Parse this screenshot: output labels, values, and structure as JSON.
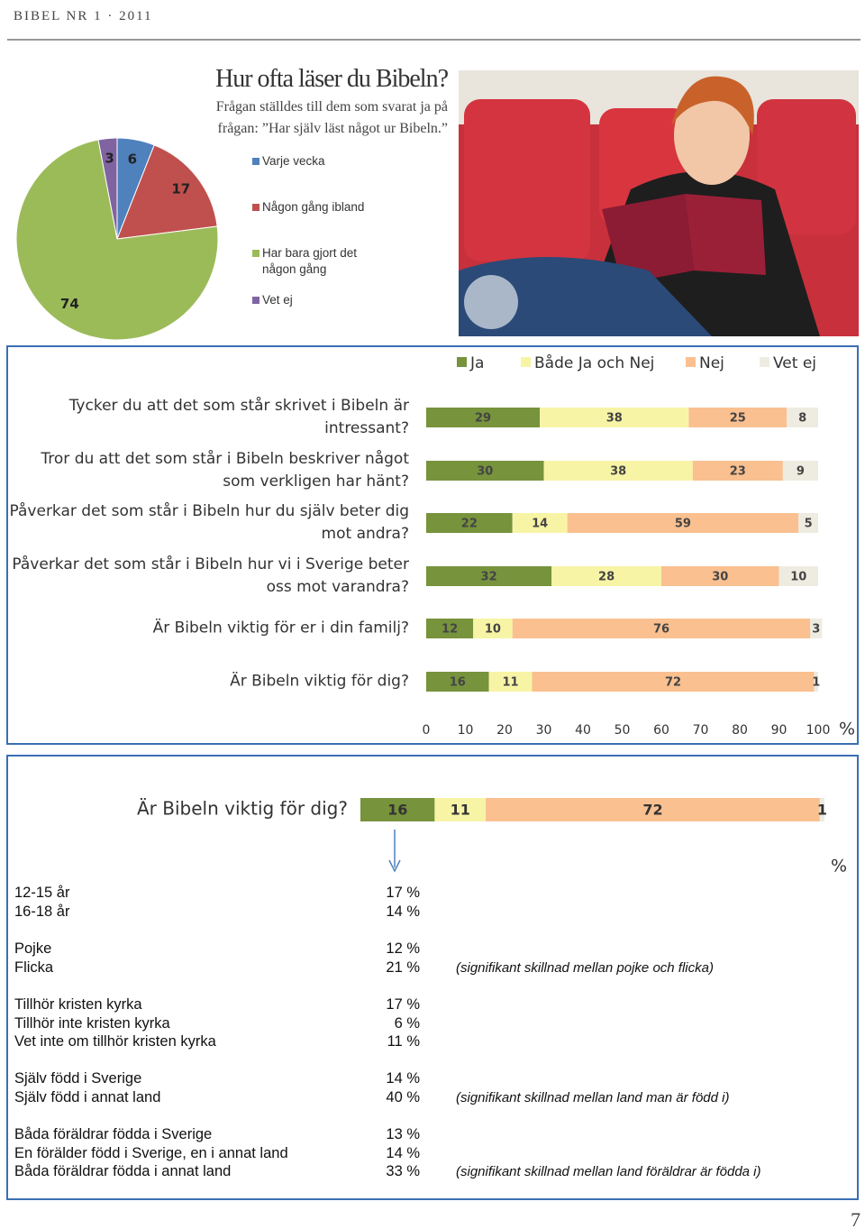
{
  "header": "BIBEL NR 1 · 2011",
  "page_number": "7",
  "chart_data": [
    {
      "type": "pie",
      "title": "Hur ofta läser du Bibeln?",
      "subtitle": "Frågan ställdes till dem som svarat ja på frågan: ”Har själv läst något ur Bibeln.”",
      "categories": [
        "Varje vecka",
        "Någon gång ibland",
        "Har bara gjort det någon gång",
        "Vet ej"
      ],
      "values": [
        6,
        17,
        74,
        3
      ],
      "colors": [
        "#4f81bd",
        "#c0504d",
        "#9bbb59",
        "#8064a2"
      ]
    },
    {
      "type": "stacked-bar",
      "categories": [
        "Tycker du att det som står skrivet i Bibeln är intressant?",
        "Tror du att det som står i Bibeln beskriver något som verkligen har hänt?",
        "Påverkar det som står i Bibeln hur du själv beter dig mot andra?",
        "Påverkar det som står i Bibeln hur vi i Sverige beter oss mot varandra?",
        "Är Bibeln viktig för er i din familj?",
        "Är Bibeln viktig för dig?"
      ],
      "series": [
        {
          "name": "Ja",
          "color": "#77933c",
          "values": [
            29,
            30,
            22,
            32,
            12,
            16
          ]
        },
        {
          "name": "Både Ja och Nej",
          "color": "#f8f4a6",
          "values": [
            38,
            38,
            14,
            28,
            10,
            11
          ]
        },
        {
          "name": "Nej",
          "color": "#fac090",
          "values": [
            25,
            23,
            59,
            30,
            76,
            72
          ]
        },
        {
          "name": "Vet ej",
          "color": "#eeece1",
          "values": [
            8,
            9,
            5,
            10,
            3,
            1
          ]
        }
      ],
      "xlim": [
        0,
        100
      ],
      "xticks": [
        0,
        10,
        20,
        30,
        40,
        50,
        60,
        70,
        80,
        90,
        100
      ],
      "xlabel": "%"
    },
    {
      "type": "stacked-bar",
      "categories": [
        "Är Bibeln viktig för dig?"
      ],
      "series": [
        {
          "color": "#77933c",
          "values": [
            16
          ]
        },
        {
          "color": "#f8f4a6",
          "values": [
            11
          ]
        },
        {
          "color": "#fac090",
          "values": [
            72
          ]
        },
        {
          "color": "#eeece1",
          "values": [
            1
          ]
        }
      ],
      "xlim": [
        0,
        100
      ],
      "xlabel": "%"
    }
  ],
  "table": {
    "groups": [
      [
        {
          "label": "12-15 år",
          "value": "17 %"
        },
        {
          "label": "16-18 år",
          "value": "14 %"
        }
      ],
      [
        {
          "label": "Pojke",
          "value": "12 %"
        },
        {
          "label": "Flicka",
          "value": "21 %",
          "note": "(signifikant skillnad mellan pojke och flicka)"
        }
      ],
      [
        {
          "label": "Tillhör kristen kyrka",
          "value": "17 %"
        },
        {
          "label": "Tillhör inte kristen kyrka",
          "value": "6 %"
        },
        {
          "label": "Vet inte om tillhör kristen kyrka",
          "value": "11 %"
        }
      ],
      [
        {
          "label": "Själv född i Sverige",
          "value": "14 %"
        },
        {
          "label": "Själv född i annat land",
          "value": "40 %",
          "note": "(signifikant skillnad mellan land man är född i)"
        }
      ],
      [
        {
          "label": "Båda föräldrar födda i Sverige",
          "value": "13 %"
        },
        {
          "label": "En förälder född i Sverige, en i annat land",
          "value": "14 %"
        },
        {
          "label": "Båda föräldrar födda i annat land",
          "value": "33 %",
          "note": "(signifikant skillnad mellan land föräldrar är födda i)"
        }
      ]
    ]
  }
}
